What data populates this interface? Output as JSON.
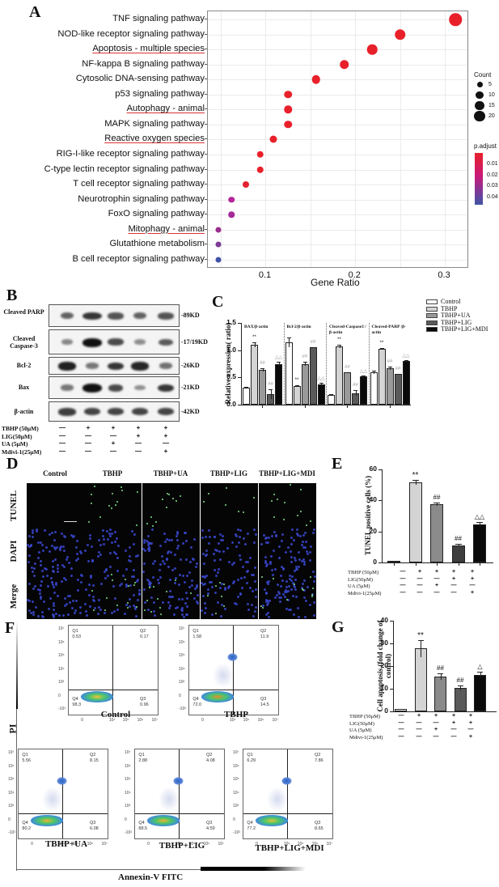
{
  "panels": {
    "A": "A",
    "B": "B",
    "C": "C",
    "D": "D",
    "E": "E",
    "F": "F",
    "G": "G"
  },
  "chart_data": [
    {
      "panel": "A",
      "type": "scatter",
      "title": "",
      "xlabel": "Gene Ratio",
      "ylabel": "",
      "xlim": [
        0.04,
        0.33
      ],
      "xticks": [
        "0.1",
        "0.2",
        "0.3"
      ],
      "grid": true,
      "categories": [
        "TNF signaling pathway",
        "NOD-like receptor signaling pathway",
        "Apoptosis - multiple species",
        "NF-kappa B signaling pathway",
        "Cytosolic DNA-sensing pathway",
        "p53 signaling pathway",
        "Autophagy - animal",
        "MAPK signaling pathway",
        "Reactive oxygen species",
        "RIG-I-like receptor signaling pathway",
        "C-type lectin receptor signaling pathway",
        "T cell receptor signaling pathway",
        "Neurotrophin signaling pathway",
        "FoxO signaling pathway",
        "Mitophagy - animal",
        "Glutathione metabolism",
        "B cell receptor signaling pathway"
      ],
      "underlined": [
        "Apoptosis - multiple species",
        "Autophagy - animal",
        "Reactive oxygen species",
        "Mitophagy - animal"
      ],
      "gene_ratio": [
        0.312,
        0.25,
        0.219,
        0.188,
        0.156,
        0.125,
        0.125,
        0.125,
        0.109,
        0.094,
        0.094,
        0.078,
        0.062,
        0.062,
        0.047,
        0.047,
        0.047
      ],
      "count": [
        20,
        16,
        14,
        12,
        10,
        8,
        8,
        8,
        7,
        6,
        6,
        5,
        4,
        4,
        3,
        3,
        3
      ],
      "p_adjust": [
        0.001,
        0.001,
        0.001,
        0.001,
        0.001,
        0.002,
        0.002,
        0.002,
        0.002,
        0.003,
        0.003,
        0.005,
        0.025,
        0.028,
        0.03,
        0.033,
        0.045
      ],
      "dot_colors": [
        "#e8202a",
        "#e8202a",
        "#e8202a",
        "#e8202a",
        "#e8202a",
        "#e8202a",
        "#e8202a",
        "#e8202a",
        "#e8202a",
        "#e8202a",
        "#e8202a",
        "#e4212e",
        "#b4259a",
        "#a52a9a",
        "#9a2d8e",
        "#7c3b96",
        "#3f52a8"
      ],
      "legend": {
        "count_title": "Count",
        "count_values": [
          "5",
          "10",
          "15",
          "20"
        ],
        "color_title": "p.adjust",
        "color_values": [
          "0.01",
          "0.02",
          "0.03",
          "0.04"
        ],
        "color_low": "#e8202a",
        "color_high": "#3f55a5"
      }
    },
    {
      "panel": "C",
      "type": "bar",
      "ylabel": "Relative  expression( ratio)",
      "ylim": [
        0,
        1.5
      ],
      "yticks": [
        "0.0",
        "0.5",
        "1.0",
        "1.5"
      ],
      "groups": [
        "BAX/β-actin",
        "Bcl-2/β-actin",
        "Cleaved-Caspase3 /β-actin",
        "Cleaved-PARP /β-actin"
      ],
      "series": [
        {
          "name": "Control",
          "values": [
            0.31,
            1.14,
            0.18,
            0.6
          ],
          "errors": [
            0.02,
            0.09,
            0.01,
            0.03
          ],
          "color": "#ffffff"
        },
        {
          "name": "TBHP",
          "values": [
            1.1,
            0.34,
            1.07,
            1.03
          ],
          "errors": [
            0.04,
            0.01,
            0.03,
            0.01
          ],
          "color": "#d4d4d4"
        },
        {
          "name": "TBHP+UA",
          "values": [
            0.64,
            0.75,
            0.59,
            0.67
          ],
          "errors": [
            0.03,
            0.04,
            0.01,
            0.03
          ],
          "color": "#9a9a9a"
        },
        {
          "name": "TBHP+LIG",
          "values": [
            0.19,
            1.05,
            0.21,
            0.56
          ],
          "errors": [
            0.09,
            0.01,
            0.05,
            0.01
          ],
          "color": "#5a5a5a"
        },
        {
          "name": "TBHP+LIG+MDI",
          "values": [
            0.75,
            0.37,
            0.52,
            0.8
          ],
          "errors": [
            0.03,
            0.03,
            0.01,
            0.01
          ],
          "color": "#0a0a0a"
        }
      ],
      "annotations": [
        [
          "",
          "**",
          "##",
          "##",
          "△△"
        ],
        [
          "",
          "**",
          "##",
          "##",
          "△△"
        ],
        [
          "",
          "**",
          "##",
          "##",
          "△△"
        ],
        [
          "",
          "**",
          "##",
          "##",
          "△△"
        ]
      ]
    },
    {
      "panel": "E",
      "type": "bar",
      "ylabel": "TUNEL positive cells (%)",
      "ylim": [
        0,
        60
      ],
      "yticks": [
        "0",
        "20",
        "40",
        "60"
      ],
      "categories": [
        "Control",
        "TBHP",
        "TBHP+UA",
        "TBHP+LIG",
        "TBHP+LIG+MDI"
      ],
      "values": [
        1.0,
        51.8,
        37.5,
        11.0,
        24.5
      ],
      "errors": [
        0.3,
        1.5,
        1.2,
        0.8,
        1.8
      ],
      "colors": [
        "#ffffff",
        "#d4d4d4",
        "#8a8a8a",
        "#3e3e3e",
        "#0a0a0a"
      ],
      "annotations": [
        "",
        "**",
        "##",
        "##",
        "△△"
      ]
    },
    {
      "panel": "G",
      "type": "bar",
      "ylabel": "Cell apoptosis (fold change of control)",
      "ylim": [
        0,
        40
      ],
      "yticks": [
        "0",
        "10",
        "20",
        "30",
        "40"
      ],
      "categories": [
        "Control",
        "TBHP",
        "TBHP+UA",
        "TBHP+LIG",
        "TBHP+LIG+MDI"
      ],
      "values": [
        1.0,
        27.8,
        15.4,
        10.3,
        16.2
      ],
      "errors": [
        0.1,
        3.8,
        1.3,
        1.0,
        1.3
      ],
      "colors": [
        "#ffffff",
        "#d4d4d4",
        "#8a8a8a",
        "#5a5a5a",
        "#0a0a0a"
      ],
      "annotations": [
        "",
        "**",
        "##",
        "##",
        "△"
      ]
    },
    {
      "panel": "F",
      "type": "scatter",
      "xlabel": "Annexin-V FITC",
      "ylabel": "PI",
      "axis_ticks": [
        "-10³",
        "0",
        "10³",
        "10⁴",
        "10⁵",
        "10⁶",
        "10⁷"
      ],
      "plots": [
        {
          "name": "Control",
          "Q1": "0.53",
          "Q2": "0.17",
          "Q3": "0.96",
          "Q4": "98.3"
        },
        {
          "name": "TBHP",
          "Q1": "1.58",
          "Q2": "11.9",
          "Q3": "14.5",
          "Q4": "72.0"
        },
        {
          "name": "TBHP+UA",
          "Q1": "5.56",
          "Q2": "8.15",
          "Q3": "6.08",
          "Q4": "80.2"
        },
        {
          "name": "TBHP+LIG",
          "Q1": "2.88",
          "Q2": "4.08",
          "Q3": "4.59",
          "Q4": "88.5"
        },
        {
          "name": "TBHP+LIG+MDI",
          "Q1": "6.29",
          "Q2": "7.86",
          "Q3": "8.65",
          "Q4": "77.2"
        }
      ]
    }
  ],
  "panelB": {
    "proteins": [
      {
        "name": "Cleaved PARP",
        "kd": "-89KD"
      },
      {
        "name": "Cleaved Caspase-3",
        "kd": "-17/19KD"
      },
      {
        "name": "Bcl-2",
        "kd": "-26KD"
      },
      {
        "name": "Bax",
        "kd": "-21KD"
      },
      {
        "name": "β-actin",
        "kd": "-42KD"
      }
    ]
  },
  "conditions": {
    "labels": [
      "TBHP (50μM)",
      "LIG(50μM)",
      "UA (5μM)",
      "Mdivi-1(25μM)"
    ],
    "signs": [
      [
        "—",
        "+",
        "+",
        "+",
        "+"
      ],
      [
        "—",
        "—",
        "—",
        "+",
        "+"
      ],
      [
        "—",
        "—",
        "+",
        "—",
        "—"
      ],
      [
        "—",
        "—",
        "—",
        "—",
        "+"
      ]
    ]
  },
  "panelD": {
    "columns": [
      "Control",
      "TBHP",
      "TBHP+UA",
      "TBHP+LIG",
      "TBHP+LIG+MDI"
    ],
    "rows": [
      "TUNEL",
      "DAPI",
      "Merge"
    ]
  },
  "panelF": {
    "xlabel": "Annexin-V FITC",
    "ylabel": "PI",
    "quadrant_names": [
      "Q1",
      "Q2",
      "Q3",
      "Q4"
    ]
  }
}
